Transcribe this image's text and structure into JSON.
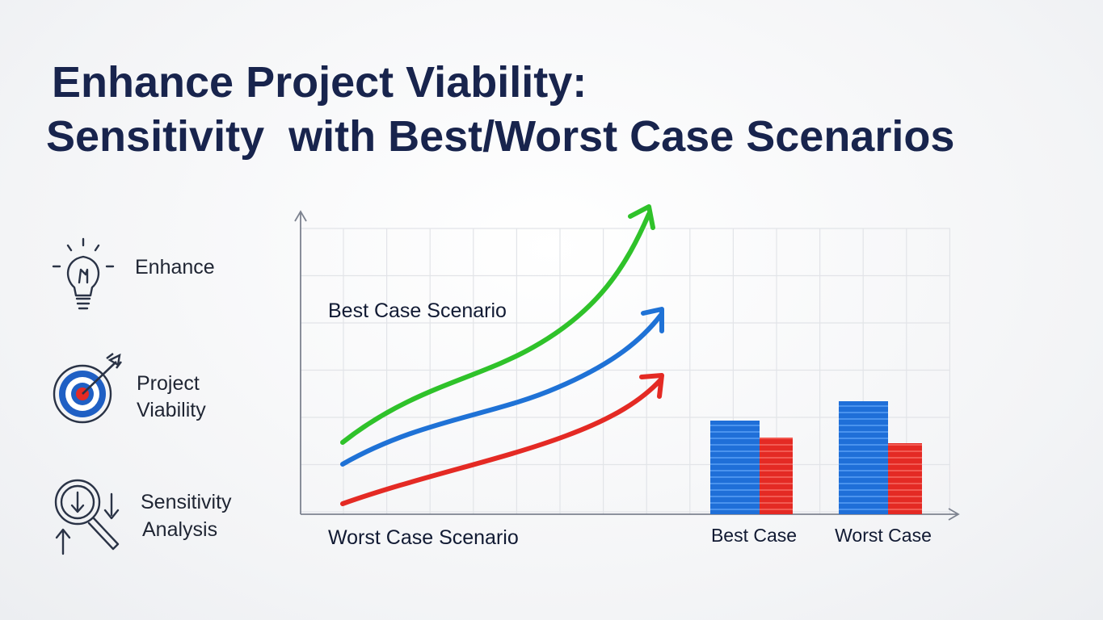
{
  "header": {
    "title_lines": [
      "Enhance Project Viability:",
      "Sensitivity  with Best/Worst Case Scenarios"
    ]
  },
  "sidebar": {
    "items": [
      {
        "lines": [
          "Enhance"
        ]
      },
      {
        "lines": [
          "Project",
          "Viability"
        ]
      },
      {
        "lines": [
          "Sensitivity",
          "Analysis"
        ]
      }
    ]
  },
  "chart": {
    "best_label": "Best Case Scenario",
    "worst_label": "Worst Case Scenario",
    "bar_labels": [
      "Best Case",
      "Worst Case"
    ]
  }
}
